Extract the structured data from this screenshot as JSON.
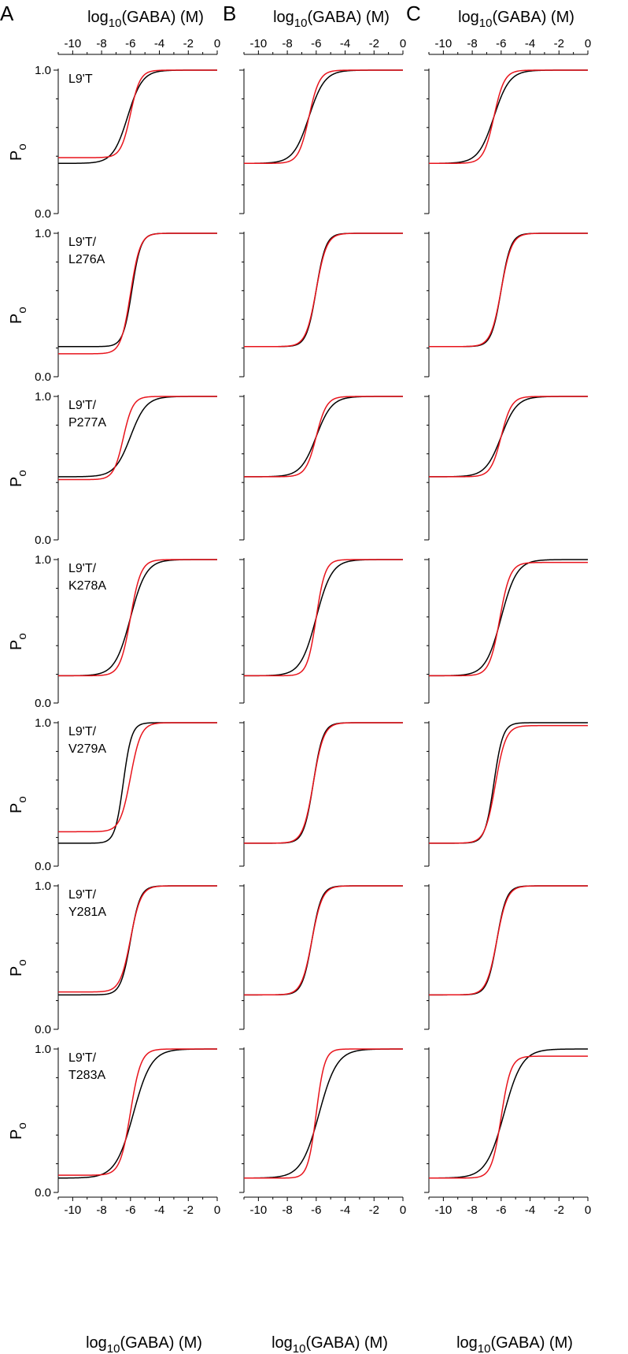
{
  "figure": {
    "panel_letters": [
      "A",
      "B",
      "C"
    ],
    "top_axis_title": {
      "main": "log",
      "sub": "10",
      "rest": "(GABA) (M)"
    },
    "bottom_axis_title": {
      "main": "log",
      "sub": "10",
      "rest": "(GABA) (M)"
    },
    "y_axis_title": {
      "main": "P",
      "sub": "o"
    },
    "x_tick_labels": [
      "-10",
      "-8",
      "-6",
      "-4",
      "-2",
      "0"
    ],
    "y_tick_labels": [
      "0.0",
      "1.0"
    ],
    "colors": {
      "model_1": "#000000",
      "model_2": "#e8141c"
    }
  },
  "chart_data": {
    "type": "line",
    "description_axis": {
      "x_range": [
        -11,
        0
      ],
      "y_range": [
        0,
        1
      ]
    },
    "columns": [
      "A",
      "B",
      "C"
    ],
    "rows": [
      {
        "label": "L9'T",
        "panels": [
          {
            "black": {
              "bottom": 0.35,
              "top": 1.0,
              "ec50": -6.2,
              "n": 0.85
            },
            "red": {
              "bottom": 0.39,
              "top": 1.0,
              "ec50": -6.0,
              "n": 1.3
            }
          },
          {
            "black": {
              "bottom": 0.35,
              "top": 1.0,
              "ec50": -6.5,
              "n": 0.8
            },
            "red": {
              "bottom": 0.35,
              "top": 1.0,
              "ec50": -6.5,
              "n": 1.2
            }
          },
          {
            "black": {
              "bottom": 0.35,
              "top": 1.0,
              "ec50": -6.5,
              "n": 0.8
            },
            "red": {
              "bottom": 0.35,
              "top": 1.0,
              "ec50": -6.5,
              "n": 1.2
            }
          }
        ]
      },
      {
        "label_lines": [
          "L9'T/",
          "L276A"
        ],
        "label": "L9'T/L276A",
        "panels": [
          {
            "black": {
              "bottom": 0.21,
              "top": 1.0,
              "ec50": -5.9,
              "n": 1.4
            },
            "red": {
              "bottom": 0.16,
              "top": 1.0,
              "ec50": -6.0,
              "n": 1.3
            }
          },
          {
            "black": {
              "bottom": 0.21,
              "top": 1.0,
              "ec50": -6.0,
              "n": 1.3
            },
            "red": {
              "bottom": 0.21,
              "top": 1.0,
              "ec50": -6.0,
              "n": 1.2
            }
          },
          {
            "black": {
              "bottom": 0.21,
              "top": 1.0,
              "ec50": -6.0,
              "n": 1.3
            },
            "red": {
              "bottom": 0.21,
              "top": 1.0,
              "ec50": -6.0,
              "n": 1.2
            }
          }
        ]
      },
      {
        "label_lines": [
          "L9'T/",
          "P277A"
        ],
        "label": "L9'T/P277A",
        "panels": [
          {
            "black": {
              "bottom": 0.44,
              "top": 1.0,
              "ec50": -6.0,
              "n": 0.8
            },
            "red": {
              "bottom": 0.42,
              "top": 1.0,
              "ec50": -6.5,
              "n": 1.3
            }
          },
          {
            "black": {
              "bottom": 0.44,
              "top": 1.0,
              "ec50": -6.0,
              "n": 0.8
            },
            "red": {
              "bottom": 0.44,
              "top": 1.0,
              "ec50": -6.0,
              "n": 1.2
            }
          },
          {
            "black": {
              "bottom": 0.44,
              "top": 1.0,
              "ec50": -6.0,
              "n": 0.8
            },
            "red": {
              "bottom": 0.44,
              "top": 1.0,
              "ec50": -6.0,
              "n": 1.2
            }
          }
        ]
      },
      {
        "label_lines": [
          "L9'T/",
          "K278A"
        ],
        "label": "L9'T/K278A",
        "panels": [
          {
            "black": {
              "bottom": 0.19,
              "top": 1.0,
              "ec50": -6.0,
              "n": 0.8
            },
            "red": {
              "bottom": 0.19,
              "top": 1.0,
              "ec50": -6.0,
              "n": 1.2
            }
          },
          {
            "black": {
              "bottom": 0.19,
              "top": 1.0,
              "ec50": -6.0,
              "n": 0.8
            },
            "red": {
              "bottom": 0.19,
              "top": 1.0,
              "ec50": -6.0,
              "n": 1.4
            }
          },
          {
            "black": {
              "bottom": 0.19,
              "top": 1.0,
              "ec50": -6.0,
              "n": 0.8
            },
            "red": {
              "bottom": 0.19,
              "top": 0.98,
              "ec50": -6.1,
              "n": 1.2
            }
          }
        ]
      },
      {
        "label_lines": [
          "L9'T/",
          "V279A"
        ],
        "label": "L9'T/V279A",
        "panels": [
          {
            "black": {
              "bottom": 0.16,
              "top": 1.0,
              "ec50": -6.5,
              "n": 1.5
            },
            "red": {
              "bottom": 0.24,
              "top": 1.0,
              "ec50": -6.0,
              "n": 1.2
            }
          },
          {
            "black": {
              "bottom": 0.16,
              "top": 1.0,
              "ec50": -6.2,
              "n": 1.3
            },
            "red": {
              "bottom": 0.16,
              "top": 1.0,
              "ec50": -6.2,
              "n": 1.2
            }
          },
          {
            "black": {
              "bottom": 0.16,
              "top": 1.0,
              "ec50": -6.5,
              "n": 1.4
            },
            "red": {
              "bottom": 0.16,
              "top": 0.98,
              "ec50": -6.4,
              "n": 1.2
            }
          }
        ]
      },
      {
        "label_lines": [
          "L9'T/",
          "Y281A"
        ],
        "label": "L9'T/Y281A",
        "panels": [
          {
            "black": {
              "bottom": 0.24,
              "top": 1.0,
              "ec50": -6.0,
              "n": 1.3
            },
            "red": {
              "bottom": 0.26,
              "top": 1.0,
              "ec50": -6.0,
              "n": 1.2
            }
          },
          {
            "black": {
              "bottom": 0.24,
              "top": 1.0,
              "ec50": -6.3,
              "n": 1.3
            },
            "red": {
              "bottom": 0.24,
              "top": 1.0,
              "ec50": -6.3,
              "n": 1.2
            }
          },
          {
            "black": {
              "bottom": 0.24,
              "top": 1.0,
              "ec50": -6.3,
              "n": 1.3
            },
            "red": {
              "bottom": 0.24,
              "top": 1.0,
              "ec50": -6.3,
              "n": 1.2
            }
          }
        ]
      },
      {
        "label_lines": [
          "L9'T/",
          "T283A"
        ],
        "label": "L9'T/T283A",
        "panels": [
          {
            "black": {
              "bottom": 0.1,
              "top": 1.0,
              "ec50": -5.8,
              "n": 0.7
            },
            "red": {
              "bottom": 0.12,
              "top": 1.0,
              "ec50": -6.0,
              "n": 1.2
            }
          },
          {
            "black": {
              "bottom": 0.1,
              "top": 1.0,
              "ec50": -5.8,
              "n": 0.7
            },
            "red": {
              "bottom": 0.1,
              "top": 1.0,
              "ec50": -6.0,
              "n": 1.5
            }
          },
          {
            "black": {
              "bottom": 0.1,
              "top": 1.0,
              "ec50": -5.8,
              "n": 0.7
            },
            "red": {
              "bottom": 0.1,
              "top": 0.95,
              "ec50": -6.0,
              "n": 1.3
            }
          }
        ]
      }
    ]
  }
}
